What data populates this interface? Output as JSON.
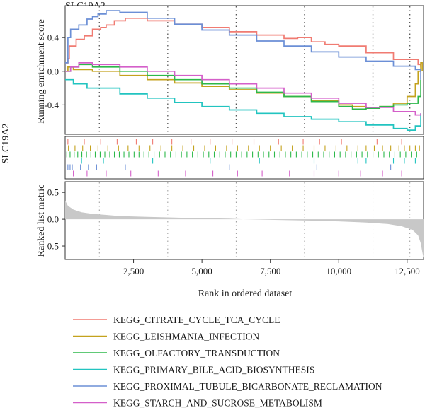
{
  "chart_data": {
    "type": "line",
    "title": "SLC19A2",
    "xlabel": "Rank in ordered dataset",
    "xlim": [
      0,
      13100
    ],
    "x_ticks": [
      2500,
      5000,
      7500,
      10000,
      12500
    ],
    "x_tick_labels": [
      "2,500",
      "5,000",
      "7,500",
      "10,000",
      "12,500"
    ],
    "panels": {
      "enrichment": {
        "ylabel": "Running enrichment score",
        "ylim": [
          -0.75,
          0.78
        ],
        "y_ticks": [
          0.4,
          0.0,
          -0.4
        ],
        "y_tick_labels": [
          "0.4",
          "0.0",
          "-0.4"
        ]
      },
      "hits": {
        "ylabel": "SLC19A2"
      },
      "ranked": {
        "ylabel": "Ranked list metric",
        "ylim": [
          -0.75,
          0.7
        ],
        "y_ticks": [
          0.5,
          0.0,
          -0.5
        ],
        "y_tick_labels": [
          "0.5",
          "0.0",
          "-0.5"
        ],
        "fill_color": "#c8c8c8",
        "x": [
          0,
          100,
          300,
          600,
          1000,
          1500,
          2000,
          3000,
          4000,
          5000,
          6000,
          6500,
          7000,
          8000,
          9000,
          10000,
          11000,
          11800,
          12300,
          12700,
          12900,
          13000,
          13050,
          13100
        ],
        "values": [
          0.35,
          0.25,
          0.18,
          0.13,
          0.1,
          0.08,
          0.06,
          0.045,
          0.03,
          0.02,
          0.01,
          0.0,
          -0.005,
          -0.015,
          -0.025,
          -0.04,
          -0.06,
          -0.09,
          -0.13,
          -0.2,
          -0.3,
          -0.45,
          -0.6,
          -0.72
        ]
      }
    },
    "guide_lines_x": [
      1250,
      3750,
      6250,
      8750,
      11250,
      12600
    ],
    "series": [
      {
        "name": "KEGG_CITRATE_CYCLE_TCA_CYCLE",
        "color": "#f07b72",
        "x": [
          0,
          100,
          150,
          400,
          700,
          1000,
          1300,
          1500,
          1800,
          2200,
          3000,
          4000,
          5000,
          6000,
          7000,
          8000,
          8500,
          9000,
          9500,
          10000,
          11000,
          12000,
          12900,
          13000
        ],
        "y": [
          0.1,
          0.15,
          0.3,
          0.38,
          0.42,
          0.5,
          0.52,
          0.55,
          0.6,
          0.63,
          0.6,
          0.56,
          0.52,
          0.47,
          0.43,
          0.39,
          0.4,
          0.35,
          0.32,
          0.3,
          0.22,
          0.14,
          0.08,
          0.05
        ],
        "hits": [
          100,
          700,
          1300,
          1900,
          2600,
          3200,
          3900,
          4600,
          5300,
          6100,
          6900,
          7800,
          8700,
          9300,
          10100,
          11400,
          12300
        ]
      },
      {
        "name": "KEGG_LEISHMANIA_INFECTION",
        "color": "#c4a21d",
        "x": [
          0,
          100,
          300,
          1000,
          2000,
          3000,
          4000,
          5000,
          6000,
          7000,
          8000,
          9000,
          10000,
          10500,
          11000,
          11500,
          12000,
          12500,
          12800,
          12900,
          13000,
          13050
        ],
        "y": [
          0.0,
          0.05,
          0.02,
          0.0,
          -0.05,
          -0.1,
          -0.14,
          -0.18,
          -0.22,
          -0.26,
          -0.3,
          -0.35,
          -0.4,
          -0.42,
          -0.43,
          -0.42,
          -0.38,
          -0.3,
          -0.15,
          0.0,
          0.1,
          0.0
        ],
        "hits": [
          120,
          360,
          640,
          920,
          1200,
          1560,
          1950,
          2300,
          2700,
          3100,
          3500,
          3900,
          4300,
          4700,
          5100,
          5500,
          5900,
          6300,
          6700,
          7100,
          7500,
          7900,
          8300,
          8700,
          9100,
          9500,
          9900,
          10300,
          10700,
          11000,
          11300,
          11600,
          11900,
          12200,
          12400,
          12600,
          12800,
          12950
        ]
      },
      {
        "name": "KEGG_OLFACTORY_TRANSDUCTION",
        "color": "#2db84a",
        "x": [
          0,
          200,
          500,
          1000,
          2000,
          3000,
          4000,
          5000,
          6000,
          7000,
          8000,
          9000,
          10000,
          10500,
          11000,
          11500,
          12000,
          12500,
          12900,
          13000
        ],
        "y": [
          0.0,
          0.05,
          0.08,
          0.05,
          0.0,
          -0.05,
          -0.1,
          -0.15,
          -0.2,
          -0.25,
          -0.3,
          -0.36,
          -0.42,
          -0.45,
          -0.44,
          -0.42,
          -0.4,
          -0.38,
          -0.3,
          -0.1
        ],
        "hits": [
          60,
          180,
          330,
          460,
          610,
          780,
          940,
          1100,
          1280,
          1450,
          1630,
          1800,
          1980,
          2150,
          2330,
          2520,
          2700,
          2880,
          3060,
          3250,
          3450,
          3650,
          3850,
          4050,
          4250,
          4450,
          4650,
          4850,
          5050,
          5250,
          5450,
          5650,
          5850,
          6050,
          6250,
          6450,
          6650,
          6850,
          7050,
          7250,
          7450,
          7650,
          7850,
          8050,
          8250,
          8450,
          8650,
          8850,
          9050,
          9250,
          9450,
          9650,
          9850,
          10050,
          10250,
          10450,
          10650,
          10850,
          11050,
          11250,
          11450,
          11650,
          11850,
          12050,
          12250,
          12450,
          12650,
          12850
        ]
      },
      {
        "name": "KEGG_PRIMARY_BILE_ACID_BIOSYNTHESIS",
        "color": "#22c4c0",
        "x": [
          0,
          300,
          800,
          2000,
          3000,
          4000,
          5000,
          6000,
          7000,
          8000,
          9000,
          10000,
          11000,
          12000,
          12500,
          12800,
          13000
        ],
        "y": [
          -0.1,
          -0.15,
          -0.2,
          -0.27,
          -0.32,
          -0.37,
          -0.42,
          -0.46,
          -0.5,
          -0.54,
          -0.57,
          -0.6,
          -0.64,
          -0.68,
          -0.7,
          -0.65,
          -0.5
        ],
        "hits": [
          600,
          1400,
          3200,
          5300,
          7100,
          9100,
          10700,
          11000,
          12000,
          12400,
          12800
        ]
      },
      {
        "name": "KEGG_PROXIMAL_TUBULE_BICARBONATE_RECLAMATION",
        "color": "#6b8fd6",
        "x": [
          0,
          100,
          200,
          500,
          800,
          1000,
          1200,
          1500,
          2000,
          3000,
          4000,
          5000,
          6000,
          7000,
          8000,
          9000,
          10000,
          11000,
          12000,
          12800,
          13000
        ],
        "y": [
          0.1,
          0.4,
          0.5,
          0.55,
          0.62,
          0.65,
          0.68,
          0.72,
          0.7,
          0.63,
          0.56,
          0.49,
          0.43,
          0.36,
          0.3,
          0.23,
          0.17,
          0.12,
          0.06,
          0.02,
          -0.1
        ],
        "hits": [
          100,
          180,
          260,
          560,
          850,
          1150,
          2200,
          6000,
          9200,
          11900
        ]
      },
      {
        "name": "KEGG_STARCH_AND_SUCROSE_METABOLISM",
        "color": "#d45fc9",
        "x": [
          0,
          200,
          500,
          1000,
          2000,
          3000,
          4000,
          5000,
          6000,
          7000,
          8000,
          9000,
          10000,
          11000,
          12000,
          12800,
          13000
        ],
        "y": [
          0.0,
          0.05,
          0.1,
          0.08,
          0.05,
          0.0,
          -0.05,
          -0.1,
          -0.15,
          -0.2,
          -0.26,
          -0.32,
          -0.38,
          -0.43,
          -0.48,
          -0.52,
          -0.5
        ],
        "hits": [
          300,
          800,
          1500,
          2400,
          3400,
          4400,
          5400,
          6300,
          7200,
          8200,
          9100,
          10000,
          10800,
          11600,
          12300
        ]
      }
    ]
  }
}
